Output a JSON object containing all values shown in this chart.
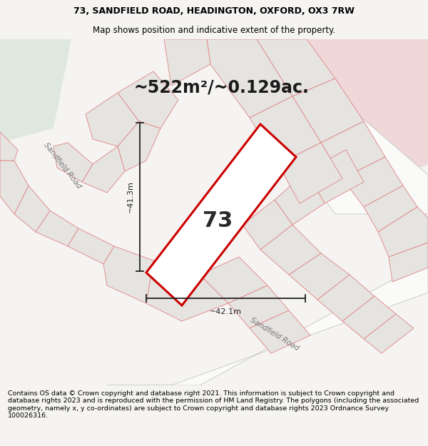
{
  "title_line1": "73, SANDFIELD ROAD, HEADINGTON, OXFORD, OX3 7RW",
  "title_line2": "Map shows position and indicative extent of the property.",
  "area_text": "~522m²/~0.129ac.",
  "number_label": "73",
  "dim_vertical": "~41.3m",
  "dim_horizontal": "~42.1m",
  "road_label_left": "Sandfield Road",
  "road_label_bottom": "Sandfield Road",
  "footer_text": "Contains OS data © Crown copyright and database right 2021. This information is subject to Crown copyright and database rights 2023 and is reproduced with the permission of HM Land Registry. The polygons (including the associated geometry, namely x, y co-ordinates) are subject to Crown copyright and database rights 2023 Ordnance Survey 100026316.",
  "bg_color": "#f5f4f2",
  "map_bg": "#eeecea",
  "plot_fill": "#ffffff",
  "plot_edge": "#cc0000",
  "neighbor_fill": "#e6e4e1",
  "neighbor_edge": "#e09090",
  "road_fill": "#fafaf8",
  "green_fill": "#dfe8df",
  "pink_fill": "#f0d8d8",
  "header_bg": "#ffffff",
  "footer_bg": "#f5f4f2",
  "dim_color": "#222222",
  "label_color": "#777777",
  "title_fontsize": 9.0,
  "subtitle_fontsize": 8.5,
  "area_fontsize": 17,
  "num_fontsize": 22,
  "dim_fontsize": 8.0,
  "road_fontsize": 7.5,
  "footer_fontsize": 6.8
}
